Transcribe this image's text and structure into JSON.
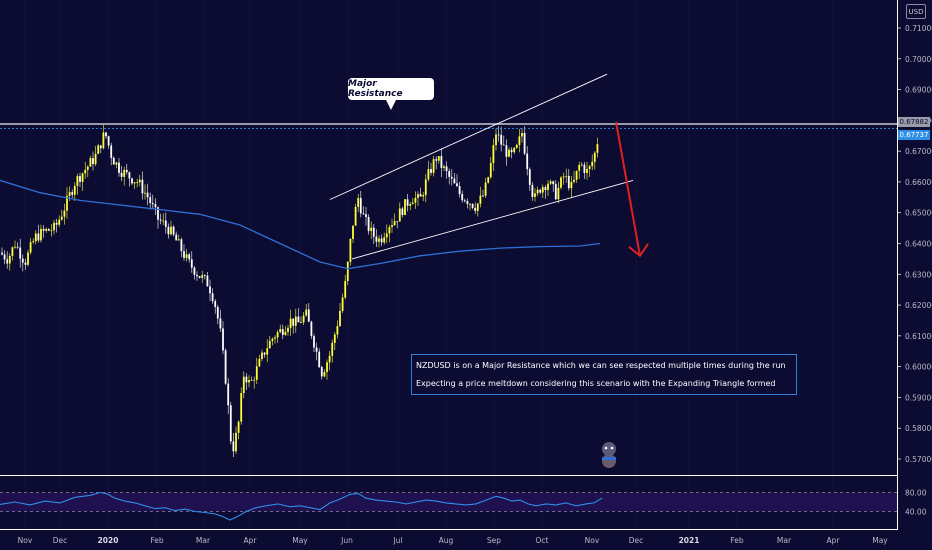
{
  "currency": "USD",
  "price_tags": {
    "resistance": "0.67882",
    "last": "0.67737"
  },
  "callout": {
    "label": "Major Resistance"
  },
  "note": {
    "line1": "NZDUSD is on a Major Resistance which we can see respected multiple times during the run",
    "line2": "Expecting a price meltdown considering this scenario with the Expanding Triangle formed"
  },
  "colors": {
    "background": "#0c0c33",
    "candle_up": "#ffff33",
    "candle_down": "#ffffff",
    "moving_average": "#2e6fd6",
    "resistance_line": "#9a9aa8",
    "arrow": "#e02020",
    "rsi_line": "#2e8fe6"
  },
  "chart_data": [
    {
      "type": "candlestick",
      "symbol": "NZDUSD",
      "y_axis": {
        "range": [
          0.565,
          0.715
        ],
        "ticks": [
          "0.71000",
          "0.70000",
          "0.69000",
          "0.68000",
          "0.67000",
          "0.66000",
          "0.65000",
          "0.64000",
          "0.63000",
          "0.62000",
          "0.61000",
          "0.60000",
          "0.59000",
          "0.58000",
          "0.57000"
        ]
      },
      "x_axis": {
        "labels": [
          "Nov",
          "Dec",
          "2020",
          "Feb",
          "Mar",
          "Apr",
          "May",
          "Jun",
          "Jul",
          "Aug",
          "Sep",
          "Oct",
          "Nov",
          "Dec",
          "2021",
          "Feb",
          "Mar",
          "Apr",
          "May"
        ]
      },
      "close_path": [
        [
          0,
          0.637
        ],
        [
          8,
          0.635
        ],
        [
          15,
          0.64
        ],
        [
          25,
          0.634
        ],
        [
          35,
          0.642
        ],
        [
          45,
          0.644
        ],
        [
          55,
          0.645
        ],
        [
          65,
          0.652
        ],
        [
          75,
          0.66
        ],
        [
          85,
          0.664
        ],
        [
          95,
          0.668
        ],
        [
          105,
          0.676
        ],
        [
          112,
          0.668
        ],
        [
          120,
          0.664
        ],
        [
          128,
          0.662
        ],
        [
          138,
          0.66
        ],
        [
          148,
          0.655
        ],
        [
          158,
          0.648
        ],
        [
          168,
          0.645
        ],
        [
          178,
          0.64
        ],
        [
          188,
          0.634
        ],
        [
          198,
          0.63
        ],
        [
          208,
          0.627
        ],
        [
          214,
          0.622
        ],
        [
          220,
          0.612
        ],
        [
          226,
          0.595
        ],
        [
          232,
          0.572
        ],
        [
          238,
          0.58
        ],
        [
          244,
          0.598
        ],
        [
          250,
          0.594
        ],
        [
          258,
          0.6
        ],
        [
          266,
          0.606
        ],
        [
          274,
          0.61
        ],
        [
          282,
          0.612
        ],
        [
          290,
          0.615
        ],
        [
          298,
          0.614
        ],
        [
          306,
          0.617
        ],
        [
          314,
          0.608
        ],
        [
          322,
          0.598
        ],
        [
          330,
          0.604
        ],
        [
          338,
          0.615
        ],
        [
          346,
          0.628
        ],
        [
          352,
          0.645
        ],
        [
          358,
          0.655
        ],
        [
          364,
          0.648
        ],
        [
          372,
          0.643
        ],
        [
          380,
          0.641
        ],
        [
          388,
          0.646
        ],
        [
          396,
          0.648
        ],
        [
          404,
          0.652
        ],
        [
          412,
          0.655
        ],
        [
          420,
          0.654
        ],
        [
          428,
          0.662
        ],
        [
          436,
          0.668
        ],
        [
          444,
          0.664
        ],
        [
          452,
          0.66
        ],
        [
          460,
          0.656
        ],
        [
          468,
          0.654
        ],
        [
          476,
          0.652
        ],
        [
          484,
          0.656
        ],
        [
          490,
          0.664
        ],
        [
          496,
          0.676
        ],
        [
          502,
          0.672
        ],
        [
          510,
          0.668
        ],
        [
          516,
          0.67
        ],
        [
          522,
          0.676
        ],
        [
          528,
          0.664
        ],
        [
          534,
          0.654
        ],
        [
          540,
          0.658
        ],
        [
          548,
          0.66
        ],
        [
          556,
          0.656
        ],
        [
          564,
          0.662
        ],
        [
          572,
          0.658
        ],
        [
          580,
          0.666
        ],
        [
          588,
          0.663
        ],
        [
          594,
          0.668
        ],
        [
          600,
          0.677
        ]
      ],
      "moving_average_path": [
        [
          0,
          0.6605
        ],
        [
          40,
          0.6565
        ],
        [
          80,
          0.654
        ],
        [
          120,
          0.6525
        ],
        [
          160,
          0.651
        ],
        [
          200,
          0.6495
        ],
        [
          240,
          0.646
        ],
        [
          280,
          0.64
        ],
        [
          320,
          0.634
        ],
        [
          348,
          0.6318
        ],
        [
          380,
          0.6335
        ],
        [
          420,
          0.636
        ],
        [
          460,
          0.6375
        ],
        [
          500,
          0.6385
        ],
        [
          540,
          0.639
        ],
        [
          580,
          0.6392
        ],
        [
          600,
          0.64
        ]
      ],
      "horizontal_lines": [
        0.67882,
        0.67737
      ],
      "triangle_upper": [
        [
          330,
          0.6543
        ],
        [
          607,
          0.695
        ]
      ],
      "triangle_lower": [
        [
          352,
          0.635
        ],
        [
          633,
          0.6605
        ]
      ],
      "projection_arrow": [
        [
          616,
          0.6795
        ],
        [
          640,
          0.636
        ]
      ],
      "rsi": {
        "ticks": [
          "80.00",
          "40.00"
        ],
        "levels": [
          80,
          40
        ],
        "range": [
          20,
          100
        ],
        "path": [
          [
            0,
            55
          ],
          [
            15,
            60
          ],
          [
            30,
            54
          ],
          [
            45,
            62
          ],
          [
            60,
            58
          ],
          [
            75,
            70
          ],
          [
            90,
            74
          ],
          [
            100,
            80
          ],
          [
            106,
            78
          ],
          [
            115,
            68
          ],
          [
            125,
            62
          ],
          [
            135,
            58
          ],
          [
            145,
            52
          ],
          [
            155,
            46
          ],
          [
            165,
            48
          ],
          [
            175,
            42
          ],
          [
            185,
            45
          ],
          [
            195,
            40
          ],
          [
            205,
            38
          ],
          [
            215,
            35
          ],
          [
            222,
            30
          ],
          [
            230,
            22
          ],
          [
            238,
            30
          ],
          [
            246,
            40
          ],
          [
            256,
            48
          ],
          [
            266,
            52
          ],
          [
            278,
            56
          ],
          [
            290,
            50
          ],
          [
            300,
            52
          ],
          [
            310,
            48
          ],
          [
            320,
            44
          ],
          [
            330,
            58
          ],
          [
            340,
            66
          ],
          [
            350,
            76
          ],
          [
            358,
            78
          ],
          [
            366,
            68
          ],
          [
            376,
            64
          ],
          [
            386,
            62
          ],
          [
            396,
            60
          ],
          [
            406,
            56
          ],
          [
            416,
            60
          ],
          [
            426,
            64
          ],
          [
            436,
            62
          ],
          [
            446,
            58
          ],
          [
            456,
            56
          ],
          [
            466,
            54
          ],
          [
            476,
            56
          ],
          [
            486,
            64
          ],
          [
            496,
            72
          ],
          [
            504,
            68
          ],
          [
            512,
            62
          ],
          [
            520,
            64
          ],
          [
            528,
            56
          ],
          [
            536,
            52
          ],
          [
            546,
            56
          ],
          [
            556,
            54
          ],
          [
            566,
            58
          ],
          [
            576,
            52
          ],
          [
            586,
            56
          ],
          [
            594,
            58
          ],
          [
            602,
            68
          ]
        ]
      }
    }
  ]
}
